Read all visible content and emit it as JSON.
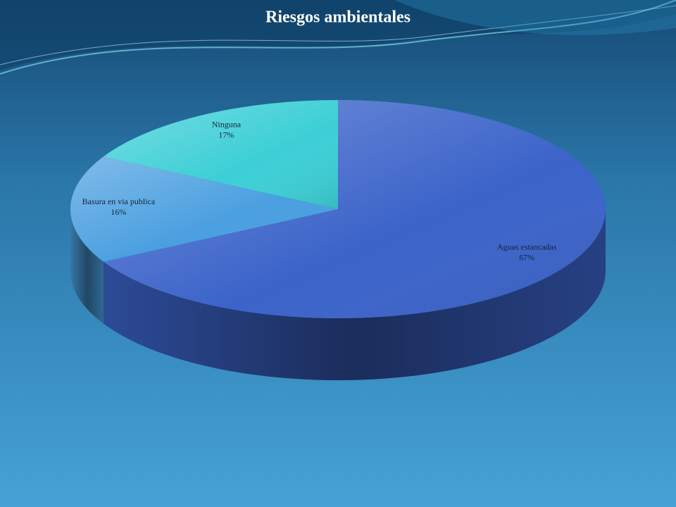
{
  "chart_data": {
    "type": "pie",
    "title": "Riesgos ambientales",
    "categories": [
      "Aguas estancadas",
      "Basura en via publica",
      "Ninguna"
    ],
    "values": [
      67,
      16,
      17
    ],
    "value_labels": [
      "67%",
      "16%",
      "17%"
    ],
    "colors": [
      "#3b63c9",
      "#4a9fe0",
      "#3dcfd6"
    ]
  }
}
